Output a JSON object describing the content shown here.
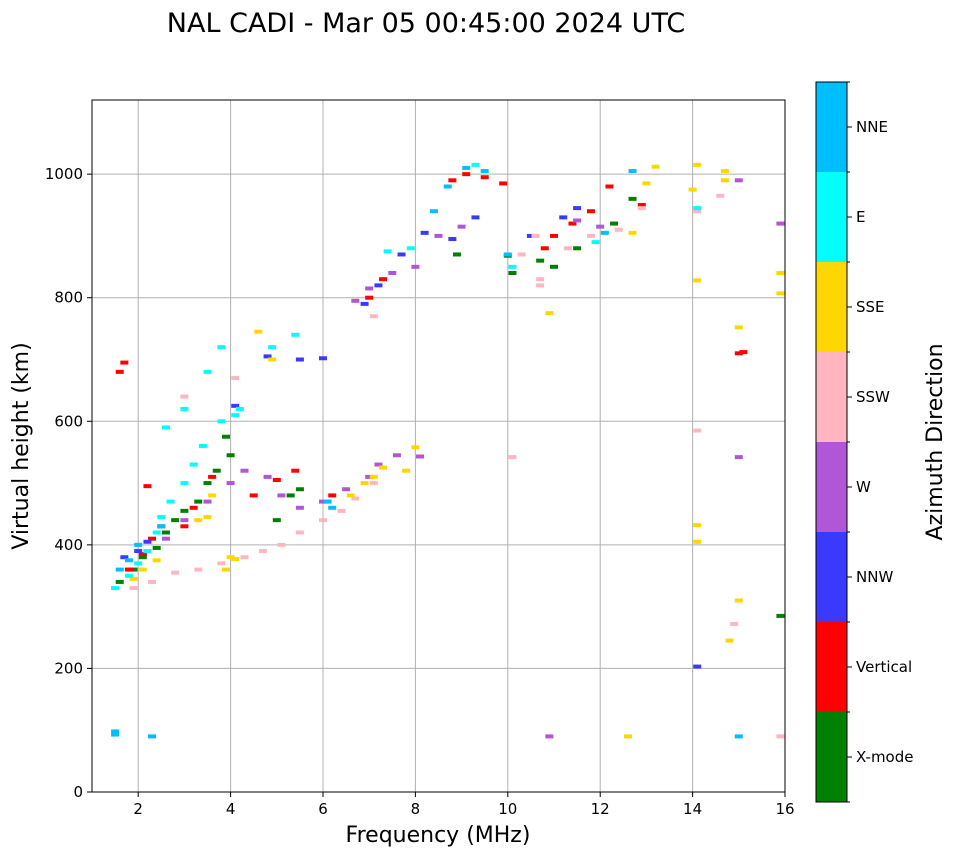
{
  "chart_data": {
    "type": "scatter",
    "title": "NAL CADI - Mar 05 00:45:00 2024 UTC",
    "xlabel": "Frequency (MHz)",
    "ylabel": "Virtual height (km)",
    "xlim": [
      1,
      16
    ],
    "ylim": [
      0,
      1120
    ],
    "x_ticks": [
      2,
      4,
      6,
      8,
      10,
      12,
      14,
      16
    ],
    "x_tick_labels": [
      "2",
      "4",
      "6",
      "8",
      "10",
      "12",
      "14",
      "16"
    ],
    "y_ticks": [
      0,
      200,
      400,
      600,
      800,
      1000
    ],
    "y_tick_labels": [
      "0",
      "200",
      "400",
      "600",
      "800",
      "1000"
    ],
    "grid": true,
    "colorbar": {
      "label": "Azimuth Direction",
      "categories": [
        {
          "name": "X-mode",
          "color": "#008000"
        },
        {
          "name": "Vertical",
          "color": "#ff0000"
        },
        {
          "name": "NNW",
          "color": "#3a3aff"
        },
        {
          "name": "W",
          "color": "#b056d6"
        },
        {
          "name": "SSW",
          "color": "#ffb6c1"
        },
        {
          "name": "SSE",
          "color": "#ffd700"
        },
        {
          "name": "E",
          "color": "#00ffff"
        },
        {
          "name": "NNE",
          "color": "#00bfff"
        }
      ]
    },
    "series": [
      {
        "name": "X-mode",
        "points": [
          [
            1.6,
            340
          ],
          [
            1.9,
            360
          ],
          [
            2.1,
            380
          ],
          [
            2.4,
            395
          ],
          [
            2.6,
            420
          ],
          [
            2.8,
            440
          ],
          [
            3.0,
            455
          ],
          [
            3.3,
            470
          ],
          [
            3.5,
            500
          ],
          [
            3.7,
            520
          ],
          [
            4.0,
            545
          ],
          [
            3.9,
            575
          ],
          [
            5.0,
            440
          ],
          [
            5.3,
            480
          ],
          [
            5.5,
            490
          ],
          [
            8.9,
            870
          ],
          [
            10.1,
            840
          ],
          [
            10.0,
            868
          ],
          [
            10.7,
            860
          ],
          [
            11.0,
            850
          ],
          [
            11.5,
            880
          ],
          [
            12.3,
            920
          ],
          [
            12.7,
            960
          ],
          [
            15.9,
            285
          ]
        ]
      },
      {
        "name": "Vertical",
        "points": [
          [
            1.6,
            680
          ],
          [
            1.7,
            695
          ],
          [
            1.8,
            360
          ],
          [
            2.1,
            385
          ],
          [
            2.3,
            410
          ],
          [
            2.5,
            430
          ],
          [
            2.2,
            495
          ],
          [
            3.0,
            430
          ],
          [
            3.2,
            460
          ],
          [
            3.6,
            510
          ],
          [
            4.5,
            480
          ],
          [
            5.0,
            505
          ],
          [
            5.4,
            520
          ],
          [
            6.2,
            480
          ],
          [
            7.0,
            800
          ],
          [
            7.3,
            830
          ],
          [
            8.8,
            990
          ],
          [
            9.1,
            1000
          ],
          [
            9.5,
            995
          ],
          [
            9.9,
            985
          ],
          [
            10.8,
            880
          ],
          [
            11.0,
            900
          ],
          [
            11.4,
            920
          ],
          [
            11.8,
            940
          ],
          [
            12.2,
            980
          ],
          [
            12.9,
            950
          ],
          [
            15.0,
            710
          ],
          [
            15.1,
            712
          ]
        ]
      },
      {
        "name": "NNW",
        "points": [
          [
            1.7,
            380
          ],
          [
            2.0,
            390
          ],
          [
            2.2,
            405
          ],
          [
            4.1,
            625
          ],
          [
            4.8,
            705
          ],
          [
            5.5,
            700
          ],
          [
            6.0,
            702
          ],
          [
            6.9,
            790
          ],
          [
            7.2,
            820
          ],
          [
            7.7,
            870
          ],
          [
            8.2,
            905
          ],
          [
            8.8,
            895
          ],
          [
            9.3,
            930
          ],
          [
            10.5,
            900
          ],
          [
            11.2,
            930
          ],
          [
            11.5,
            945
          ],
          [
            14.1,
            203
          ]
        ]
      },
      {
        "name": "W",
        "points": [
          [
            2.6,
            410
          ],
          [
            3.0,
            440
          ],
          [
            3.5,
            470
          ],
          [
            4.0,
            500
          ],
          [
            4.3,
            520
          ],
          [
            4.8,
            510
          ],
          [
            5.1,
            480
          ],
          [
            5.5,
            460
          ],
          [
            6.0,
            470
          ],
          [
            6.5,
            490
          ],
          [
            7.0,
            510
          ],
          [
            7.2,
            530
          ],
          [
            7.6,
            545
          ],
          [
            8.1,
            543
          ],
          [
            6.7,
            795
          ],
          [
            7.0,
            815
          ],
          [
            7.5,
            840
          ],
          [
            8.0,
            850
          ],
          [
            8.5,
            900
          ],
          [
            9.0,
            915
          ],
          [
            10.9,
            90
          ],
          [
            11.5,
            925
          ],
          [
            12.0,
            915
          ],
          [
            15.0,
            542
          ],
          [
            15.9,
            920
          ],
          [
            15.0,
            990
          ]
        ]
      },
      {
        "name": "SSW",
        "points": [
          [
            1.9,
            330
          ],
          [
            2.3,
            340
          ],
          [
            2.8,
            355
          ],
          [
            3.3,
            360
          ],
          [
            3.8,
            370
          ],
          [
            4.3,
            380
          ],
          [
            4.7,
            390
          ],
          [
            5.1,
            400
          ],
          [
            5.5,
            420
          ],
          [
            6.0,
            440
          ],
          [
            6.4,
            455
          ],
          [
            6.7,
            475
          ],
          [
            7.1,
            500
          ],
          [
            3.0,
            640
          ],
          [
            4.1,
            670
          ],
          [
            7.1,
            770
          ],
          [
            10.3,
            870
          ],
          [
            10.7,
            830
          ],
          [
            10.6,
            900
          ],
          [
            11.3,
            880
          ],
          [
            11.8,
            900
          ],
          [
            12.4,
            910
          ],
          [
            12.9,
            945
          ],
          [
            14.1,
            940
          ],
          [
            14.1,
            585
          ],
          [
            14.6,
            965
          ],
          [
            14.9,
            272
          ],
          [
            15.9,
            90
          ],
          [
            10.1,
            542
          ],
          [
            10.7,
            820
          ]
        ]
      },
      {
        "name": "SSE",
        "points": [
          [
            1.9,
            345
          ],
          [
            2.1,
            360
          ],
          [
            2.4,
            375
          ],
          [
            3.3,
            440
          ],
          [
            3.5,
            445
          ],
          [
            3.6,
            480
          ],
          [
            3.9,
            360
          ],
          [
            4.0,
            380
          ],
          [
            4.1,
            377
          ],
          [
            6.6,
            480
          ],
          [
            6.9,
            500
          ],
          [
            7.1,
            510
          ],
          [
            7.3,
            525
          ],
          [
            7.8,
            520
          ],
          [
            8.0,
            558
          ],
          [
            4.6,
            745
          ],
          [
            4.9,
            700
          ],
          [
            10.9,
            775
          ],
          [
            12.6,
            90
          ],
          [
            12.7,
            905
          ],
          [
            13.2,
            1012
          ],
          [
            13.0,
            985
          ],
          [
            14.1,
            828
          ],
          [
            14.1,
            432
          ],
          [
            14.1,
            405
          ],
          [
            14.7,
            1005
          ],
          [
            14.7,
            990
          ],
          [
            14.8,
            245
          ],
          [
            15.0,
            752
          ],
          [
            15.0,
            310
          ],
          [
            15.9,
            840
          ],
          [
            15.9,
            807
          ],
          [
            14.1,
            1015
          ],
          [
            14.0,
            975
          ]
        ]
      },
      {
        "name": "E",
        "points": [
          [
            1.5,
            330
          ],
          [
            1.8,
            350
          ],
          [
            2.0,
            370
          ],
          [
            2.2,
            390
          ],
          [
            2.4,
            420
          ],
          [
            2.5,
            445
          ],
          [
            2.7,
            470
          ],
          [
            3.0,
            500
          ],
          [
            3.2,
            530
          ],
          [
            3.4,
            560
          ],
          [
            3.8,
            600
          ],
          [
            4.1,
            610
          ],
          [
            4.2,
            620
          ],
          [
            2.6,
            590
          ],
          [
            3.0,
            620
          ],
          [
            3.5,
            680
          ],
          [
            3.8,
            720
          ],
          [
            4.9,
            720
          ],
          [
            5.4,
            740
          ],
          [
            7.4,
            875
          ],
          [
            7.9,
            880
          ],
          [
            9.3,
            1015
          ],
          [
            10.1,
            850
          ],
          [
            11.9,
            890
          ],
          [
            14.1,
            945
          ]
        ]
      },
      {
        "name": "NNE",
        "points": [
          [
            1.5,
            93
          ],
          [
            1.5,
            98
          ],
          [
            2.3,
            90
          ],
          [
            1.6,
            360
          ],
          [
            1.8,
            375
          ],
          [
            2.0,
            400
          ],
          [
            2.5,
            430
          ],
          [
            6.1,
            470
          ],
          [
            6.2,
            460
          ],
          [
            8.4,
            940
          ],
          [
            8.7,
            980
          ],
          [
            9.1,
            1010
          ],
          [
            9.5,
            1005
          ],
          [
            10.0,
            870
          ],
          [
            12.1,
            905
          ],
          [
            12.7,
            1005
          ],
          [
            15.0,
            90
          ]
        ]
      }
    ]
  }
}
